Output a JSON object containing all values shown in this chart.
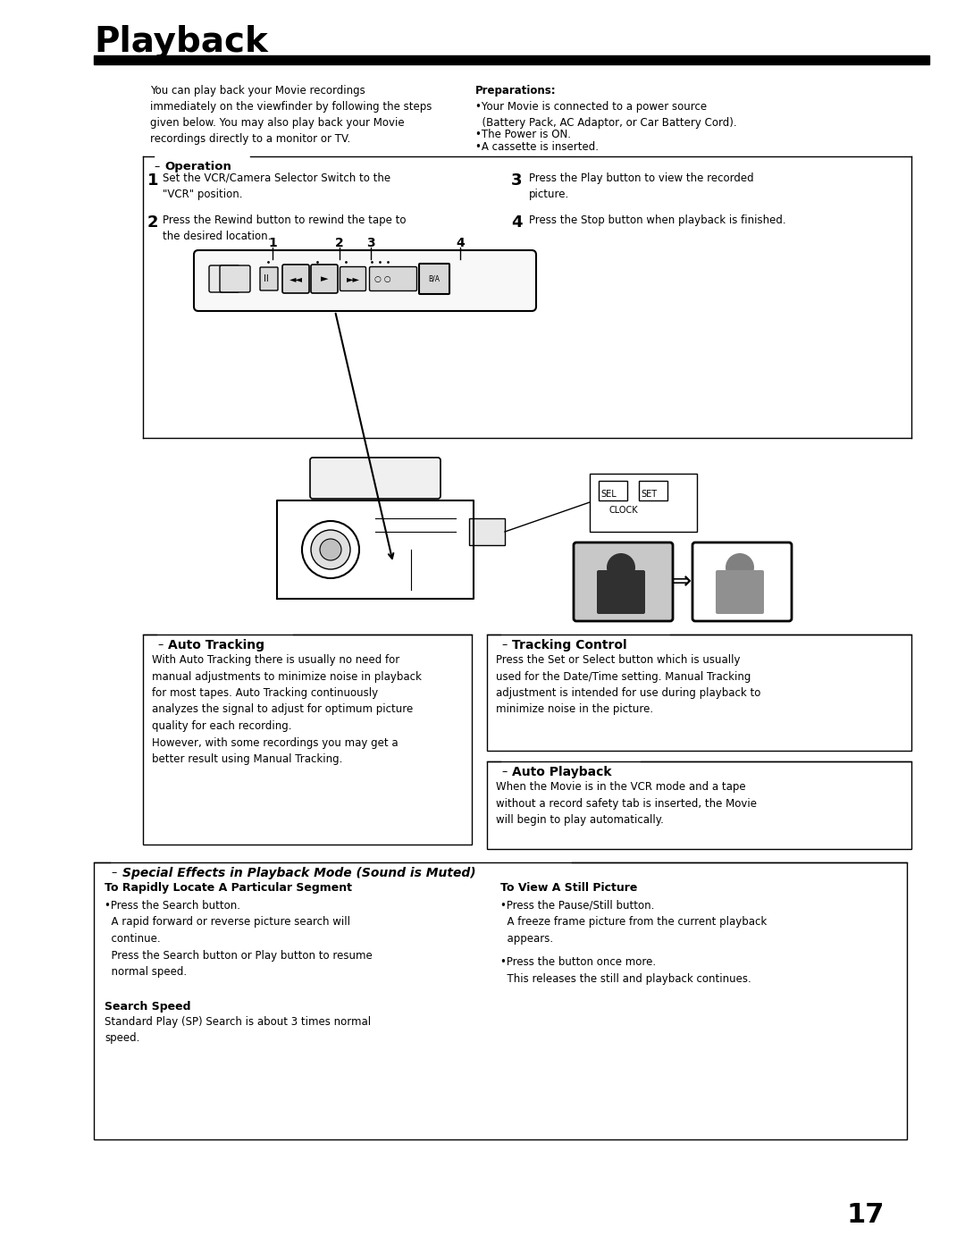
{
  "title": "Playback",
  "bg_color": "#ffffff",
  "text_color": "#000000",
  "page_number": "17",
  "intro_left": "You can play back your Movie recordings\nimmediately on the viewfinder by following the steps\ngiven below. You may also play back your Movie\nrecordings directly to a monitor or TV.",
  "preparations_title": "Preparations:",
  "prep1": "•Your Movie is connected to a power source\n  (Battery Pack, AC Adaptor, or Car Battery Cord).",
  "prep2": "•The Power is ON.",
  "prep3": "•A cassette is inserted.",
  "operation_title": "Operation",
  "op_step1_num": "1",
  "op_step1": "Set the VCR/Camera Selector Switch to the\n\"VCR\" position.",
  "op_step2_num": "2",
  "op_step2": "Press the Rewind button to rewind the tape to\nthe desired location.",
  "op_step3_num": "3",
  "op_step3": "Press the Play button to view the recorded\npicture.",
  "op_step4_num": "4",
  "op_step4": "Press the Stop button when playback is finished.",
  "auto_tracking_title": "Auto Tracking",
  "auto_tracking_text": "With Auto Tracking there is usually no need for\nmanual adjustments to minimize noise in playback\nfor most tapes. Auto Tracking continuously\nanalyzes the signal to adjust for optimum picture\nquality for each recording.\nHowever, with some recordings you may get a\nbetter result using Manual Tracking.",
  "tracking_control_title": "Tracking Control",
  "tracking_control_text": "Press the Set or Select button which is usually\nused for the Date/Time setting. Manual Tracking\nadjustment is intended for use during playback to\nminimize noise in the picture.",
  "auto_playback_title": "Auto Playback",
  "auto_playback_text": "When the Movie is in the VCR mode and a tape\nwithout a record safety tab is inserted, the Movie\nwill begin to play automatically.",
  "special_effects_title": "Special Effects in Playback Mode (Sound is Muted)",
  "rapidly_locate_title": "To Rapidly Locate A Particular Segment",
  "rapidly_locate_text": "•Press the Search button.\n  A rapid forward or reverse picture search will\n  continue.\n  Press the Search button or Play button to resume\n  normal speed.",
  "search_speed_title": "Search Speed",
  "search_speed_text": "Standard Play (SP) Search is about 3 times normal\nspeed.",
  "view_still_title": "To View A Still Picture",
  "view_still_text1": "•Press the Pause/Still button.\n  A freeze frame picture from the current playback\n  appears.",
  "view_still_text2": "•Press the button once more.\n  This releases the still and playback continues."
}
